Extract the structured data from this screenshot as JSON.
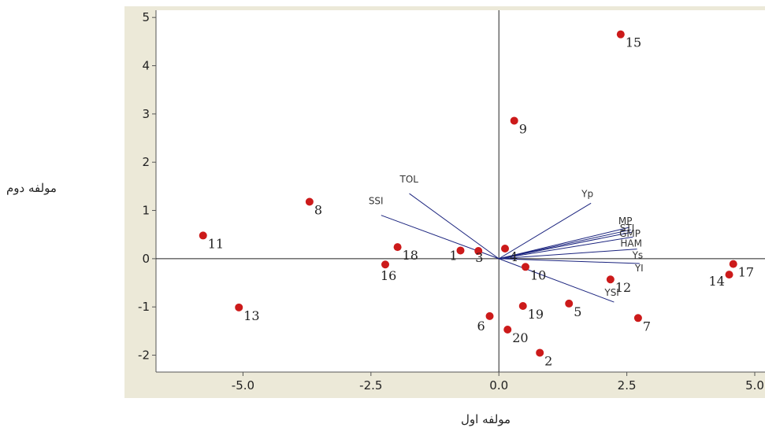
{
  "chart_data": {
    "type": "scatter",
    "title": "",
    "xlabel": "مولفه اول",
    "ylabel": "مولفه دوم",
    "xlim": [
      -6.7,
      5.2
    ],
    "ylim": [
      -2.35,
      5.15
    ],
    "grid": false,
    "x_ticks": [
      -5.0,
      -2.5,
      0.0,
      2.5,
      5.0
    ],
    "x_tick_labels": [
      "-5.0",
      "-2.5",
      "0.0",
      "2.5",
      "5.0"
    ],
    "y_ticks": [
      -2,
      -1,
      0,
      1,
      2,
      3,
      4,
      5
    ],
    "y_tick_labels": [
      "-2",
      "-1",
      "0",
      "1",
      "2",
      "3",
      "4",
      "5"
    ],
    "colors": {
      "point": "#cc1a1a",
      "vector": "#1a237e",
      "frame_bg": "#ece9d8",
      "plot_bg": "#ffffff"
    },
    "points": [
      {
        "label": "1",
        "x": -0.75,
        "y": 0.17
      },
      {
        "label": "2",
        "x": 0.8,
        "y": -1.95
      },
      {
        "label": "3",
        "x": -0.4,
        "y": 0.16
      },
      {
        "label": "4",
        "x": 0.12,
        "y": 0.21
      },
      {
        "label": "5",
        "x": 1.37,
        "y": -0.93
      },
      {
        "label": "6",
        "x": -0.18,
        "y": -1.19
      },
      {
        "label": "7",
        "x": 2.72,
        "y": -1.23
      },
      {
        "label": "8",
        "x": -3.7,
        "y": 1.18
      },
      {
        "label": "9",
        "x": 0.3,
        "y": 2.86
      },
      {
        "label": "10",
        "x": 0.52,
        "y": -0.17
      },
      {
        "label": "11",
        "x": -5.78,
        "y": 0.48
      },
      {
        "label": "12",
        "x": 2.18,
        "y": -0.43
      },
      {
        "label": "13",
        "x": -5.08,
        "y": -1.01
      },
      {
        "label": "14",
        "x": 4.5,
        "y": -0.33
      },
      {
        "label": "15",
        "x": 2.38,
        "y": 4.65
      },
      {
        "label": "16",
        "x": -2.22,
        "y": -0.12
      },
      {
        "label": "17",
        "x": 4.58,
        "y": -0.11
      },
      {
        "label": "18",
        "x": -1.98,
        "y": 0.24
      },
      {
        "label": "19",
        "x": 0.47,
        "y": -0.98
      },
      {
        "label": "20",
        "x": 0.17,
        "y": -1.47
      }
    ],
    "vectors": [
      {
        "label": "SSI",
        "x": -2.3,
        "y": 0.9
      },
      {
        "label": "TOL",
        "x": -1.75,
        "y": 1.35
      },
      {
        "label": "Yp",
        "x": 1.8,
        "y": 1.15
      },
      {
        "label": "MP",
        "x": 2.55,
        "y": 0.65
      },
      {
        "label": "STI",
        "x": 2.58,
        "y": 0.6
      },
      {
        "label": "GMP",
        "x": 2.6,
        "y": 0.55
      },
      {
        "label": "HAM",
        "x": 2.62,
        "y": 0.45
      },
      {
        "label": "Ys",
        "x": 2.7,
        "y": 0.2
      },
      {
        "label": "YI",
        "x": 2.75,
        "y": -0.1
      },
      {
        "label": "YSI",
        "x": 2.25,
        "y": -0.9
      }
    ]
  }
}
